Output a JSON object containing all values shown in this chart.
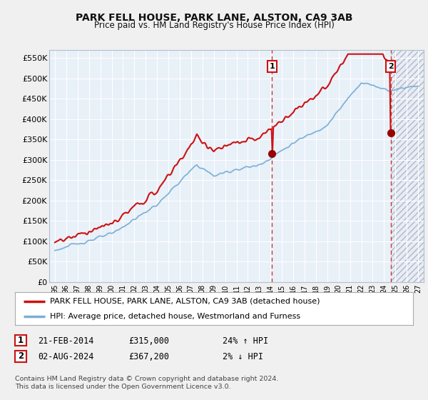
{
  "title": "PARK FELL HOUSE, PARK LANE, ALSTON, CA9 3AB",
  "subtitle": "Price paid vs. HM Land Registry's House Price Index (HPI)",
  "legend_line1": "PARK FELL HOUSE, PARK LANE, ALSTON, CA9 3AB (detached house)",
  "legend_line2": "HPI: Average price, detached house, Westmorland and Furness",
  "footnote": "Contains HM Land Registry data © Crown copyright and database right 2024.\nThis data is licensed under the Open Government Licence v3.0.",
  "sale1_date": "21-FEB-2014",
  "sale1_price": "£315,000",
  "sale1_hpi": "24% ↑ HPI",
  "sale2_date": "02-AUG-2024",
  "sale2_price": "£367,200",
  "sale2_hpi": "2% ↓ HPI",
  "sale1_x": 2014.13,
  "sale1_y": 315000,
  "sale2_x": 2024.58,
  "sale2_y": 367200,
  "hpi_color": "#7aaed6",
  "price_color": "#cc1111",
  "dot_color": "#990000",
  "plot_bg_color": "#ddeeff",
  "plot_bg_color2": "#e8f0f8",
  "hatch_bg_color": "#d0d8e8",
  "grid_color": "#c8d4e4",
  "border_color": "#b0bfd0",
  "ylim": [
    0,
    570000
  ],
  "xlim": [
    1994.5,
    2027.5
  ],
  "yticks": [
    0,
    50000,
    100000,
    150000,
    200000,
    250000,
    300000,
    350000,
    400000,
    450000,
    500000,
    550000
  ],
  "ytick_labels": [
    "£0",
    "£50K",
    "£100K",
    "£150K",
    "£200K",
    "£250K",
    "£300K",
    "£350K",
    "£400K",
    "£450K",
    "£500K",
    "£550K"
  ],
  "xtick_labels": [
    "95",
    "96",
    "97",
    "98",
    "99",
    "00",
    "01",
    "02",
    "03",
    "04",
    "05",
    "06",
    "07",
    "08",
    "09",
    "10",
    "11",
    "12",
    "13",
    "14",
    "15",
    "16",
    "17",
    "18",
    "19",
    "20",
    "21",
    "22",
    "23",
    "24",
    "25",
    "26",
    "27"
  ],
  "xticks": [
    1995,
    1996,
    1997,
    1998,
    1999,
    2000,
    2001,
    2002,
    2003,
    2004,
    2005,
    2006,
    2007,
    2008,
    2009,
    2010,
    2011,
    2012,
    2013,
    2014,
    2015,
    2016,
    2017,
    2018,
    2019,
    2020,
    2021,
    2022,
    2023,
    2024,
    2025,
    2026,
    2027
  ]
}
